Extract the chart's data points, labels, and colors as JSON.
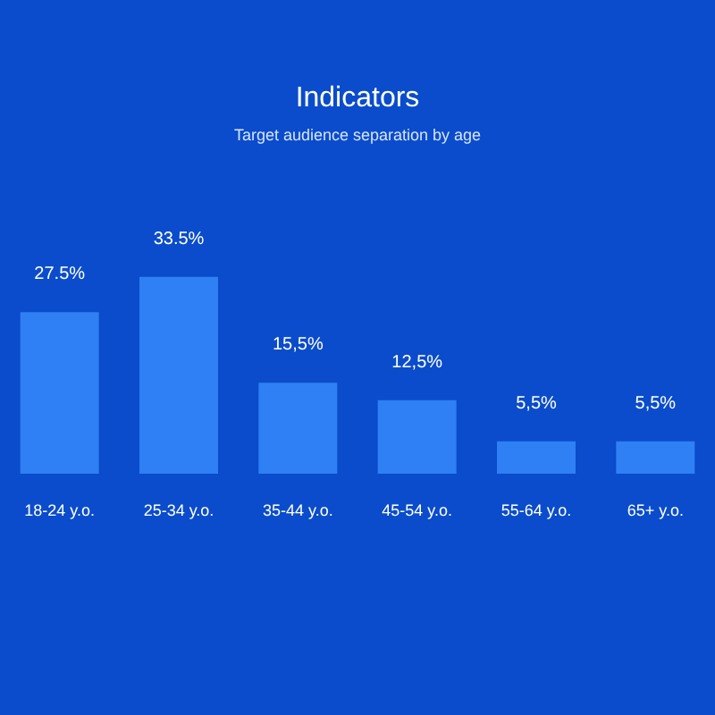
{
  "chart_data": {
    "type": "bar",
    "title": "Indicators",
    "subtitle": "Target audience separation by age",
    "categories": [
      "18-24 y.o.",
      "25-34 y.o.",
      "35-44 y.o.",
      "45-54 y.o.",
      "55-64 y.o.",
      "65+ y.o."
    ],
    "values": [
      27.5,
      33.5,
      15.5,
      12.5,
      5.5,
      5.5
    ],
    "value_labels": [
      "27.5%",
      "33.5%",
      "15,5%",
      "12,5%",
      "5,5%",
      "5,5%"
    ],
    "color": "#2f7ff5"
  }
}
